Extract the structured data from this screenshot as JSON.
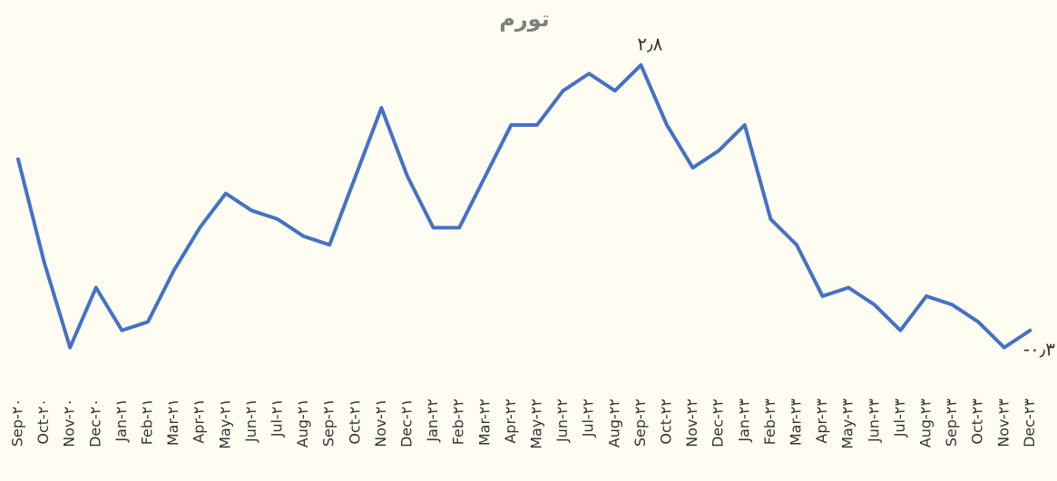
{
  "chart_data": {
    "type": "line",
    "title": "تورم",
    "categories": [
      "Sep-۲۰",
      "Oct-۲۰",
      "Nov-۲۰",
      "Dec-۲۰",
      "Jan-۲۱",
      "Feb-۲۱",
      "Mar-۲۱",
      "Apr-۲۱",
      "May-۲۱",
      "Jun-۲۱",
      "Jul-۲۱",
      "Aug-۲۱",
      "Sep-۲۱",
      "Oct-۲۱",
      "Nov-۲۱",
      "Dec-۲۱",
      "Jan-۲۲",
      "Feb-۲۲",
      "Mar-۲۲",
      "Apr-۲۲",
      "May-۲۲",
      "Jun-۲۲",
      "Jul-۲۲",
      "Aug-۲۲",
      "Sep-۲۲",
      "Oct-۲۲",
      "Nov-۲۲",
      "Dec-۲۲",
      "Jan-۲۳",
      "Feb-۲۳",
      "Mar-۲۳",
      "Apr-۲۳",
      "May-۲۳",
      "Jun-۲۳",
      "Jul-۲۳",
      "Aug-۲۳",
      "Sep-۲۳",
      "Oct-۲۳",
      "Nov-۲۳",
      "Dec-۲۳"
    ],
    "values": [
      1.7,
      0.5,
      -0.5,
      0.2,
      -0.3,
      -0.2,
      0.4,
      0.9,
      1.3,
      1.1,
      1.0,
      0.8,
      0.7,
      1.5,
      2.3,
      1.5,
      0.9,
      0.9,
      1.5,
      2.1,
      2.1,
      2.5,
      2.7,
      2.5,
      2.8,
      2.1,
      1.6,
      1.8,
      2.1,
      1.0,
      0.7,
      0.1,
      0.2,
      0.0,
      -0.3,
      0.1,
      0.0,
      -0.2,
      -0.5,
      -0.3
    ],
    "value_labels": [
      null,
      null,
      null,
      null,
      null,
      null,
      null,
      null,
      null,
      null,
      null,
      null,
      null,
      null,
      null,
      null,
      null,
      null,
      null,
      null,
      null,
      null,
      null,
      null,
      "۲٫۸",
      null,
      null,
      null,
      null,
      null,
      null,
      null,
      null,
      null,
      null,
      null,
      null,
      null,
      null,
      "-۰٫۳"
    ],
    "color": "#4472c4",
    "ylim": [
      -0.8,
      3.2
    ]
  }
}
